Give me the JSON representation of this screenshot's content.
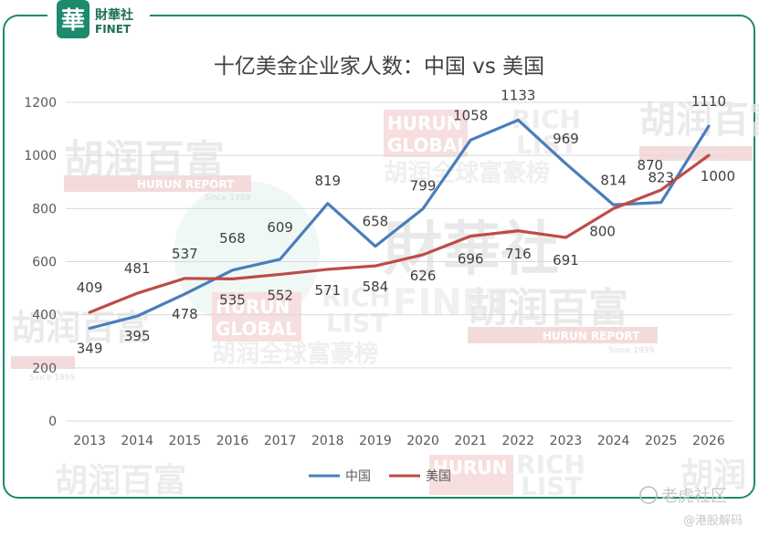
{
  "brand": {
    "logo_char": "華",
    "name_cn": "財華社",
    "name_en": "FINET"
  },
  "watermarks": {
    "hurun_cn": "胡润百富",
    "hurun_report": "HURUN REPORT",
    "since": "Since 1999",
    "hurun_global_1": "HURUN",
    "hurun_global_2": "GLOBAL",
    "rich": "RICH",
    "list": "LIST",
    "global_list_cn": "胡润全球富豪榜",
    "finet_cn": "財華社",
    "finet_en": "FINET",
    "hurun_cn_partial": "胡润"
  },
  "footer": {
    "community": "老虎社区",
    "handle": "@港股解码"
  },
  "colors": {
    "china": "#4A7EBB",
    "usa": "#BE4B48",
    "frame": "#1d8a6b",
    "grid": "#d9d9d9"
  },
  "chart_data": {
    "type": "line",
    "title": "十亿美金企业家人数：中国 vs 美国",
    "xlabel": "",
    "ylabel": "",
    "categories": [
      "2013",
      "2014",
      "2015",
      "2016",
      "2017",
      "2018",
      "2019",
      "2020",
      "2021",
      "2022",
      "2023",
      "2024",
      "2025",
      "2026"
    ],
    "ylim": [
      0,
      1200
    ],
    "yticks": [
      0,
      200,
      400,
      600,
      800,
      1000,
      1200
    ],
    "grid": "horizontal",
    "legend_position": "bottom",
    "series": [
      {
        "name": "中国",
        "color": "#4A7EBB",
        "values": [
          349,
          395,
          478,
          568,
          609,
          819,
          658,
          799,
          1058,
          1133,
          969,
          814,
          823,
          1110
        ],
        "labels": [
          "349",
          "395",
          "478",
          "568",
          "609",
          "819",
          "658",
          "799",
          "1058",
          "1133",
          "969",
          "814",
          "823",
          "1110"
        ]
      },
      {
        "name": "美国",
        "color": "#BE4B48",
        "values": [
          409,
          481,
          537,
          535,
          552,
          571,
          584,
          626,
          696,
          716,
          691,
          800,
          870,
          1000
        ],
        "labels": [
          "409",
          "481",
          "537",
          "535",
          "552",
          "571",
          "584",
          "626",
          "696",
          "716",
          "691",
          "800",
          "870",
          "1000"
        ]
      }
    ]
  }
}
